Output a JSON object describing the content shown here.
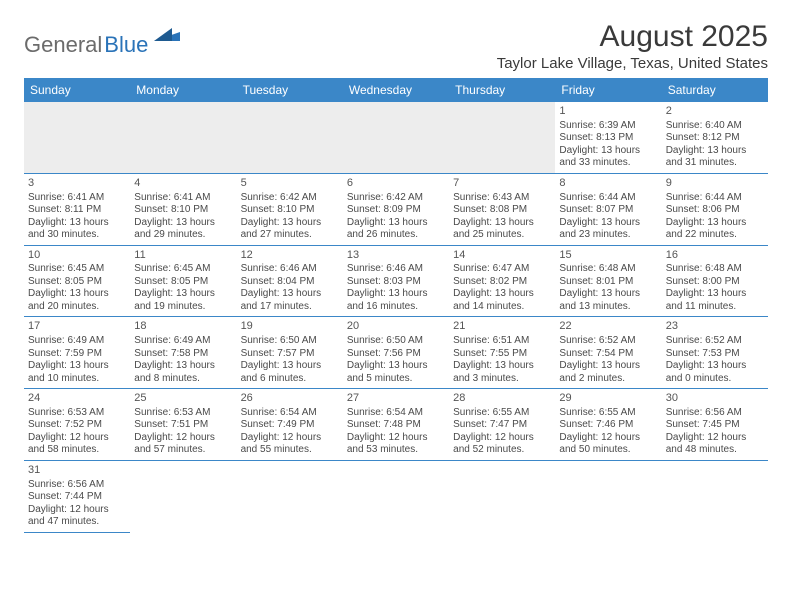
{
  "brand": {
    "part1": "General",
    "part2": "Blue"
  },
  "title": "August 2025",
  "location": "Taylor Lake Village, Texas, United States",
  "colors": {
    "header_bg": "#3b87c8",
    "header_fg": "#ffffff",
    "cell_border": "#3b87c8",
    "empty_bg": "#ededed",
    "text": "#4a4a4a",
    "brand_grey": "#6b6b6b",
    "brand_blue": "#2a73b8"
  },
  "day_headers": [
    "Sunday",
    "Monday",
    "Tuesday",
    "Wednesday",
    "Thursday",
    "Friday",
    "Saturday"
  ],
  "leading_empty": 5,
  "days": [
    {
      "n": "1",
      "sunrise": "6:39 AM",
      "sunset": "8:13 PM",
      "dl_h": "13",
      "dl_m": "33"
    },
    {
      "n": "2",
      "sunrise": "6:40 AM",
      "sunset": "8:12 PM",
      "dl_h": "13",
      "dl_m": "31"
    },
    {
      "n": "3",
      "sunrise": "6:41 AM",
      "sunset": "8:11 PM",
      "dl_h": "13",
      "dl_m": "30"
    },
    {
      "n": "4",
      "sunrise": "6:41 AM",
      "sunset": "8:10 PM",
      "dl_h": "13",
      "dl_m": "29"
    },
    {
      "n": "5",
      "sunrise": "6:42 AM",
      "sunset": "8:10 PM",
      "dl_h": "13",
      "dl_m": "27"
    },
    {
      "n": "6",
      "sunrise": "6:42 AM",
      "sunset": "8:09 PM",
      "dl_h": "13",
      "dl_m": "26"
    },
    {
      "n": "7",
      "sunrise": "6:43 AM",
      "sunset": "8:08 PM",
      "dl_h": "13",
      "dl_m": "25"
    },
    {
      "n": "8",
      "sunrise": "6:44 AM",
      "sunset": "8:07 PM",
      "dl_h": "13",
      "dl_m": "23"
    },
    {
      "n": "9",
      "sunrise": "6:44 AM",
      "sunset": "8:06 PM",
      "dl_h": "13",
      "dl_m": "22"
    },
    {
      "n": "10",
      "sunrise": "6:45 AM",
      "sunset": "8:05 PM",
      "dl_h": "13",
      "dl_m": "20"
    },
    {
      "n": "11",
      "sunrise": "6:45 AM",
      "sunset": "8:05 PM",
      "dl_h": "13",
      "dl_m": "19"
    },
    {
      "n": "12",
      "sunrise": "6:46 AM",
      "sunset": "8:04 PM",
      "dl_h": "13",
      "dl_m": "17"
    },
    {
      "n": "13",
      "sunrise": "6:46 AM",
      "sunset": "8:03 PM",
      "dl_h": "13",
      "dl_m": "16"
    },
    {
      "n": "14",
      "sunrise": "6:47 AM",
      "sunset": "8:02 PM",
      "dl_h": "13",
      "dl_m": "14"
    },
    {
      "n": "15",
      "sunrise": "6:48 AM",
      "sunset": "8:01 PM",
      "dl_h": "13",
      "dl_m": "13"
    },
    {
      "n": "16",
      "sunrise": "6:48 AM",
      "sunset": "8:00 PM",
      "dl_h": "13",
      "dl_m": "11"
    },
    {
      "n": "17",
      "sunrise": "6:49 AM",
      "sunset": "7:59 PM",
      "dl_h": "13",
      "dl_m": "10"
    },
    {
      "n": "18",
      "sunrise": "6:49 AM",
      "sunset": "7:58 PM",
      "dl_h": "13",
      "dl_m": "8"
    },
    {
      "n": "19",
      "sunrise": "6:50 AM",
      "sunset": "7:57 PM",
      "dl_h": "13",
      "dl_m": "6"
    },
    {
      "n": "20",
      "sunrise": "6:50 AM",
      "sunset": "7:56 PM",
      "dl_h": "13",
      "dl_m": "5"
    },
    {
      "n": "21",
      "sunrise": "6:51 AM",
      "sunset": "7:55 PM",
      "dl_h": "13",
      "dl_m": "3"
    },
    {
      "n": "22",
      "sunrise": "6:52 AM",
      "sunset": "7:54 PM",
      "dl_h": "13",
      "dl_m": "2"
    },
    {
      "n": "23",
      "sunrise": "6:52 AM",
      "sunset": "7:53 PM",
      "dl_h": "13",
      "dl_m": "0"
    },
    {
      "n": "24",
      "sunrise": "6:53 AM",
      "sunset": "7:52 PM",
      "dl_h": "12",
      "dl_m": "58"
    },
    {
      "n": "25",
      "sunrise": "6:53 AM",
      "sunset": "7:51 PM",
      "dl_h": "12",
      "dl_m": "57"
    },
    {
      "n": "26",
      "sunrise": "6:54 AM",
      "sunset": "7:49 PM",
      "dl_h": "12",
      "dl_m": "55"
    },
    {
      "n": "27",
      "sunrise": "6:54 AM",
      "sunset": "7:48 PM",
      "dl_h": "12",
      "dl_m": "53"
    },
    {
      "n": "28",
      "sunrise": "6:55 AM",
      "sunset": "7:47 PM",
      "dl_h": "12",
      "dl_m": "52"
    },
    {
      "n": "29",
      "sunrise": "6:55 AM",
      "sunset": "7:46 PM",
      "dl_h": "12",
      "dl_m": "50"
    },
    {
      "n": "30",
      "sunrise": "6:56 AM",
      "sunset": "7:45 PM",
      "dl_h": "12",
      "dl_m": "48"
    },
    {
      "n": "31",
      "sunrise": "6:56 AM",
      "sunset": "7:44 PM",
      "dl_h": "12",
      "dl_m": "47"
    }
  ],
  "labels": {
    "sunrise": "Sunrise: ",
    "sunset": "Sunset: ",
    "daylight_prefix": "Daylight: ",
    "hours_word": " hours",
    "and_word": "and ",
    "minutes_word": " minutes."
  }
}
